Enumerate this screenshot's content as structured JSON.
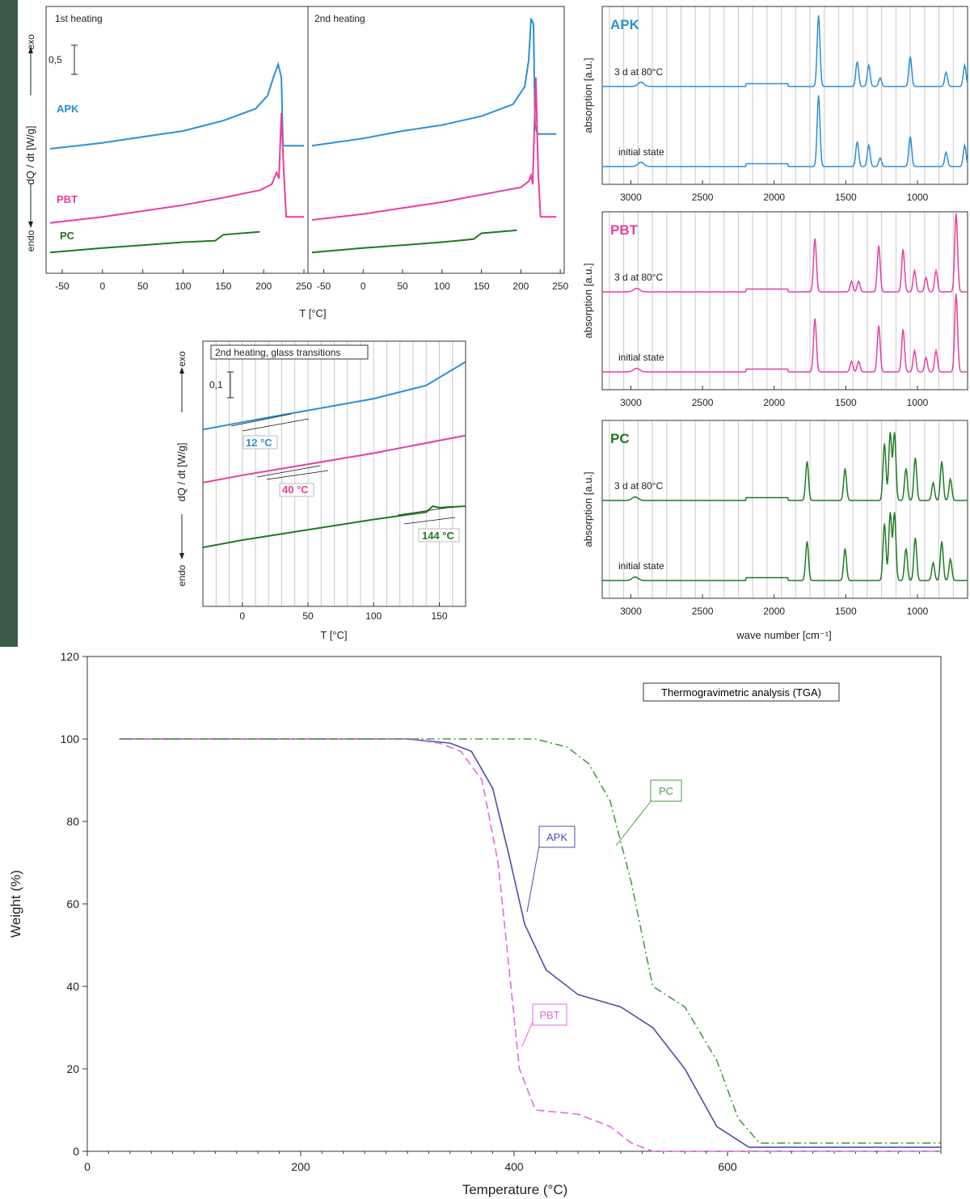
{
  "colors": {
    "APK": "#2b8fd6",
    "PBT": "#e83f9c",
    "PC": "#1f7a1f",
    "tga_APK": "#4a4fb0",
    "tga_PBT": "#e06be6",
    "tga_PC": "#4f9a4a"
  },
  "chart_data": [
    {
      "type": "line",
      "panels": [
        "1st heating",
        "2nd heating"
      ],
      "ylabel": "dQ / dt [W/g]",
      "xlabel": "T [°C]",
      "exo_label": "exo",
      "endo_label": "endo",
      "scale_bar": "0,5",
      "x_ticks": [
        -50,
        0,
        50,
        100,
        150,
        200,
        250
      ],
      "xlim": [
        -70,
        255
      ],
      "series": [
        {
          "name": "APK",
          "panel1": [
            [
              -65,
              4.2
            ],
            [
              0,
              4.4
            ],
            [
              50,
              4.6
            ],
            [
              100,
              4.8
            ],
            [
              150,
              5.15
            ],
            [
              190,
              5.55
            ],
            [
              205,
              6.0
            ],
            [
              212,
              6.6
            ],
            [
              218,
              7.05
            ],
            [
              222,
              6.6
            ],
            [
              224,
              4.3
            ],
            [
              250,
              4.3
            ]
          ],
          "panel2": [
            [
              -65,
              4.3
            ],
            [
              0,
              4.55
            ],
            [
              50,
              4.8
            ],
            [
              100,
              5.0
            ],
            [
              150,
              5.3
            ],
            [
              190,
              5.7
            ],
            [
              205,
              6.3
            ],
            [
              210,
              7.2
            ],
            [
              213,
              8.6
            ],
            [
              216,
              8.4
            ],
            [
              218,
              5.0
            ],
            [
              221,
              4.7
            ],
            [
              245,
              4.7
            ]
          ]
        },
        {
          "name": "PBT",
          "panel1": [
            [
              -65,
              1.7
            ],
            [
              0,
              1.9
            ],
            [
              50,
              2.1
            ],
            [
              100,
              2.3
            ],
            [
              150,
              2.55
            ],
            [
              195,
              2.8
            ],
            [
              210,
              3.0
            ],
            [
              216,
              3.4
            ],
            [
              219,
              3.2
            ],
            [
              222,
              5.4
            ],
            [
              225,
              3.4
            ],
            [
              228,
              1.9
            ],
            [
              250,
              1.9
            ]
          ],
          "panel2": [
            [
              -65,
              1.8
            ],
            [
              0,
              2.0
            ],
            [
              50,
              2.2
            ],
            [
              100,
              2.4
            ],
            [
              150,
              2.65
            ],
            [
              200,
              2.9
            ],
            [
              210,
              3.1
            ],
            [
              213,
              3.3
            ],
            [
              215,
              3.0
            ],
            [
              219,
              6.6
            ],
            [
              222,
              3.4
            ],
            [
              225,
              1.9
            ],
            [
              245,
              1.9
            ]
          ]
        },
        {
          "name": "PC",
          "panel1": [
            [
              -65,
              0.7
            ],
            [
              0,
              0.85
            ],
            [
              50,
              0.95
            ],
            [
              100,
              1.05
            ],
            [
              140,
              1.1
            ],
            [
              150,
              1.3
            ],
            [
              195,
              1.4
            ]
          ],
          "panel2": [
            [
              -65,
              0.7
            ],
            [
              0,
              0.85
            ],
            [
              50,
              0.95
            ],
            [
              100,
              1.05
            ],
            [
              140,
              1.15
            ],
            [
              150,
              1.35
            ],
            [
              195,
              1.45
            ]
          ]
        }
      ]
    },
    {
      "type": "line",
      "title": "2nd heating, glass transitions",
      "ylabel": "dQ / dt [W/g]",
      "xlabel": "T [°C]",
      "exo_label": "exo",
      "endo_label": "endo",
      "scale_bar": "0,1",
      "x_ticks": [
        0,
        50,
        100,
        150
      ],
      "xlim": [
        -30,
        170
      ],
      "annotations": [
        {
          "series": "APK",
          "text": "12 °C"
        },
        {
          "series": "PBT",
          "text": "40 °C"
        },
        {
          "series": "PC",
          "text": "144 °C"
        }
      ],
      "series": [
        {
          "name": "APK",
          "values": [
            [
              -30,
              6.0
            ],
            [
              0,
              6.25
            ],
            [
              12,
              6.35
            ],
            [
              50,
              6.65
            ],
            [
              100,
              7.05
            ],
            [
              140,
              7.5
            ],
            [
              170,
              8.3
            ]
          ]
        },
        {
          "name": "PBT",
          "values": [
            [
              -30,
              4.2
            ],
            [
              0,
              4.45
            ],
            [
              40,
              4.75
            ],
            [
              100,
              5.2
            ],
            [
              170,
              5.8
            ]
          ]
        },
        {
          "name": "PC",
          "values": [
            [
              -30,
              2.0
            ],
            [
              0,
              2.25
            ],
            [
              50,
              2.6
            ],
            [
              100,
              2.95
            ],
            [
              140,
              3.2
            ],
            [
              145,
              3.4
            ],
            [
              150,
              3.35
            ],
            [
              170,
              3.4
            ]
          ]
        }
      ]
    },
    {
      "type": "line",
      "ylabel": "absorption [a.u.]",
      "xlabel": "wave number [cm⁻¹]",
      "x_ticks": [
        3000,
        2500,
        2000,
        1500,
        1000
      ],
      "xlim": [
        3200,
        650
      ],
      "reversed_x": true,
      "panels": [
        {
          "name": "APK",
          "state_labels": [
            "3 d at 80°C",
            "initial state"
          ],
          "peaks": [
            [
              2930,
              0.06
            ],
            [
              1690,
              1.0
            ],
            [
              1420,
              0.35
            ],
            [
              1340,
              0.3
            ],
            [
              1260,
              0.12
            ],
            [
              1050,
              0.42
            ],
            [
              800,
              0.2
            ],
            [
              670,
              0.3
            ]
          ]
        },
        {
          "name": "PBT",
          "state_labels": [
            "3 d at 80°C",
            "initial state"
          ],
          "peaks": [
            [
              2960,
              0.05
            ],
            [
              1715,
              0.75
            ],
            [
              1460,
              0.15
            ],
            [
              1410,
              0.15
            ],
            [
              1270,
              0.65
            ],
            [
              1100,
              0.6
            ],
            [
              1020,
              0.3
            ],
            [
              940,
              0.2
            ],
            [
              870,
              0.3
            ],
            [
              730,
              1.1
            ]
          ]
        },
        {
          "name": "PC",
          "state_labels": [
            "3 d at 80°C",
            "initial state"
          ],
          "peaks": [
            [
              2970,
              0.05
            ],
            [
              1770,
              0.55
            ],
            [
              1505,
              0.45
            ],
            [
              1230,
              0.8
            ],
            [
              1190,
              0.95
            ],
            [
              1160,
              0.95
            ],
            [
              1080,
              0.45
            ],
            [
              1015,
              0.6
            ],
            [
              890,
              0.25
            ],
            [
              830,
              0.55
            ],
            [
              770,
              0.3
            ]
          ]
        }
      ]
    },
    {
      "type": "line",
      "title": "Thermogravimetric analysis (TGA)",
      "xlabel": "Temperature (°C)",
      "ylabel": "Weight (%)",
      "xlim": [
        0,
        800
      ],
      "ylim": [
        0,
        120
      ],
      "x_ticks": [
        0,
        200,
        400,
        600
      ],
      "y_ticks": [
        0,
        20,
        40,
        60,
        80,
        100,
        120
      ],
      "series": [
        {
          "name": "APK",
          "x": [
            30,
            300,
            340,
            360,
            380,
            395,
            410,
            430,
            460,
            500,
            530,
            560,
            590,
            620,
            800
          ],
          "y": [
            100,
            100,
            99,
            97,
            88,
            72,
            55,
            44,
            38,
            35,
            30,
            20,
            6,
            1,
            1
          ]
        },
        {
          "name": "PBT",
          "x": [
            30,
            300,
            330,
            350,
            370,
            385,
            395,
            405,
            420,
            460,
            490,
            510,
            530,
            800
          ],
          "y": [
            100,
            100,
            99,
            97,
            90,
            70,
            45,
            20,
            10,
            9,
            6,
            2,
            0,
            0
          ]
        },
        {
          "name": "PC",
          "x": [
            30,
            420,
            450,
            470,
            490,
            510,
            530,
            560,
            590,
            610,
            630,
            800
          ],
          "y": [
            100,
            100,
            98,
            94,
            85,
            65,
            40,
            35,
            22,
            8,
            2,
            2
          ]
        }
      ]
    }
  ]
}
